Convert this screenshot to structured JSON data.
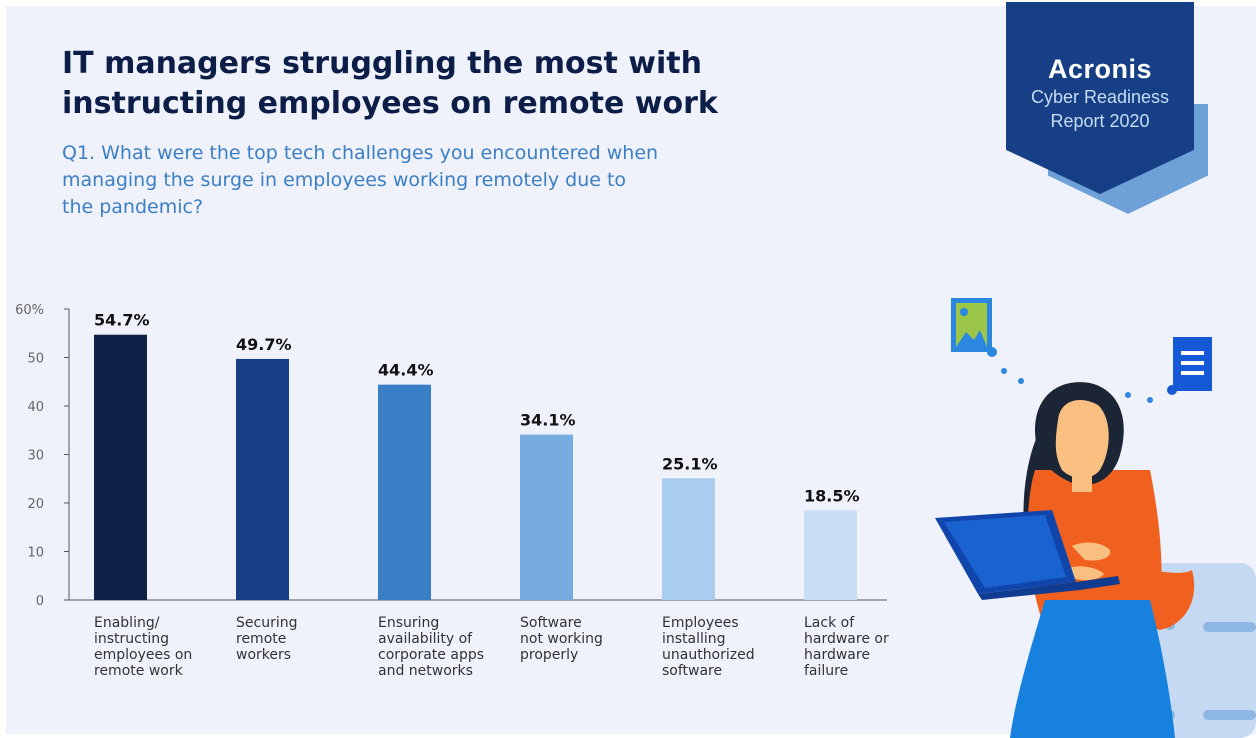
{
  "title": "IT managers struggling the most with instructing employees on remote work",
  "subtitle": "Q1. What were the top tech challenges you encountered when managing the surge in employees working remotely due to the pandemic?",
  "badge": {
    "brand": "Acronis",
    "line1": "Cyber Readiness",
    "line2": "Report 2020"
  },
  "colors": [
    "#0e2146",
    "#163f85",
    "#3a7ec6",
    "#77ace0",
    "#a9cdee",
    "#c9def4"
  ],
  "chart_data": {
    "type": "bar",
    "categories": [
      "Enabling/ instructing employees on remote work",
      "Securing remote workers",
      "Ensuring availability of corporate apps and networks",
      "Software not working properly",
      "Employees installing unauthorized software",
      "Lack of hardware or hardware failure"
    ],
    "category_lines": [
      [
        "Enabling/",
        "instructing",
        "employees on",
        "remote work"
      ],
      [
        "Securing",
        "remote",
        "workers"
      ],
      [
        "Ensuring",
        "availability of",
        "corporate apps",
        "and networks"
      ],
      [
        "Software",
        "not working",
        "properly"
      ],
      [
        "Employees",
        "installing",
        "unauthorized",
        "software"
      ],
      [
        "Lack of",
        "hardware or",
        "hardware",
        "failure"
      ]
    ],
    "values": [
      54.7,
      49.7,
      44.4,
      34.1,
      25.1,
      18.5
    ],
    "value_labels": [
      "54.7%",
      "49.7%",
      "44.4%",
      "34.1%",
      "25.1%",
      "18.5%"
    ],
    "ylim": [
      0,
      60
    ],
    "yticks": [
      0,
      10,
      20,
      30,
      40,
      50,
      60
    ],
    "ytick_labels": [
      "0",
      "10",
      "20",
      "30",
      "40",
      "50",
      "60%"
    ],
    "grid": false
  }
}
